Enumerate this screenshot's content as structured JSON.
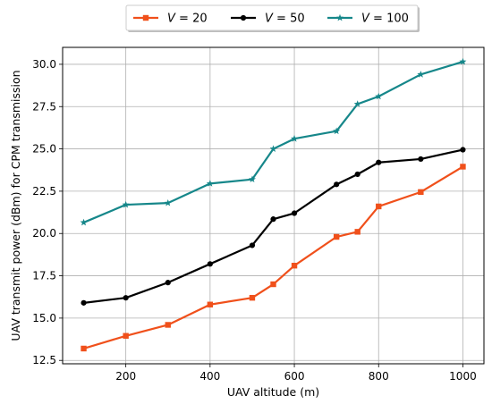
{
  "chart_data": {
    "type": "line",
    "xlabel": "UAV altitude (m)",
    "ylabel": "UAV transmit power (dBm) for CPM transmission",
    "xlim": [
      50,
      1050
    ],
    "ylim": [
      12.3,
      31.0
    ],
    "x_ticks": [
      200,
      400,
      600,
      800,
      1000
    ],
    "y_ticks": [
      12.5,
      15.0,
      17.5,
      20.0,
      22.5,
      25.0,
      27.5,
      30.0
    ],
    "y_tick_labels": [
      "12.5",
      "15.0",
      "17.5",
      "20.0",
      "22.5",
      "25.0",
      "27.5",
      "30.0"
    ],
    "grid": true,
    "legend_position": "top-center, outside plot",
    "x": [
      100,
      200,
      300,
      400,
      500,
      550,
      600,
      700,
      750,
      800,
      900,
      1000
    ],
    "series": [
      {
        "name_var": "V",
        "name_val": " = 20",
        "color": "#f0501b",
        "marker": "square",
        "values": [
          13.2,
          13.95,
          14.6,
          15.8,
          16.2,
          17.0,
          18.1,
          19.8,
          20.1,
          21.6,
          22.45,
          23.95
        ]
      },
      {
        "name_var": "V",
        "name_val": " = 50",
        "color": "#000000",
        "marker": "circle",
        "values": [
          15.9,
          16.2,
          17.1,
          18.2,
          19.3,
          20.85,
          21.2,
          22.9,
          23.5,
          24.2,
          24.4,
          24.95
        ]
      },
      {
        "name_var": "V",
        "name_val": " = 100",
        "color": "#16878a",
        "marker": "star",
        "values": [
          20.65,
          21.7,
          21.8,
          22.95,
          23.2,
          25.0,
          25.6,
          26.05,
          27.65,
          28.1,
          29.4,
          30.15
        ]
      }
    ]
  }
}
